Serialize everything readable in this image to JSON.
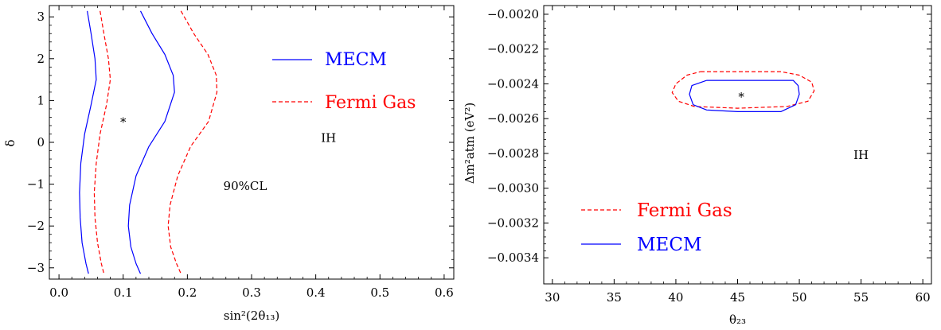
{
  "chart_data": [
    {
      "type": "line",
      "xlabel": "sin²(2θ₁₃)",
      "ylabel": "δ",
      "xlim": [
        -0.015,
        0.615
      ],
      "ylim": [
        -3.27,
        3.27
      ],
      "xticks": [
        0.0,
        0.1,
        0.2,
        0.3,
        0.4,
        0.5,
        0.6
      ],
      "xtick_labels": [
        "0.0",
        "0.1",
        "0.2",
        "0.3",
        "0.4",
        "0.5",
        "0.6"
      ],
      "yticks": [
        -3,
        -2,
        -1,
        0,
        1,
        2,
        3
      ],
      "ytick_labels": [
        "−3",
        "−2",
        "−1",
        "0",
        "1",
        "2",
        "3"
      ],
      "grid": false,
      "legend_position": "top-right",
      "legend": [
        {
          "label": "MECM",
          "color": "#0000ff",
          "dash": "solid"
        },
        {
          "label": "Fermi Gas",
          "color": "#ff0000",
          "dash": "dashed"
        }
      ],
      "annotations": [
        {
          "text": "IH",
          "x": 0.42,
          "y": 0.1
        },
        {
          "text": "90%CL",
          "x": 0.29,
          "y": -1.05
        }
      ],
      "best_fit": {
        "marker": "*",
        "x": 0.1,
        "y": 0.5
      },
      "series": [
        {
          "legend_index": 0,
          "color": "#0000ff",
          "dash": "solid",
          "points": [
            [
              0.044,
              3.14
            ],
            [
              0.05,
              2.6
            ],
            [
              0.056,
              2.0
            ],
            [
              0.058,
              1.5
            ],
            [
              0.05,
              0.9
            ],
            [
              0.04,
              0.2
            ],
            [
              0.034,
              -0.5
            ],
            [
              0.032,
              -1.2
            ],
            [
              0.033,
              -1.8
            ],
            [
              0.036,
              -2.4
            ],
            [
              0.042,
              -2.9
            ],
            [
              0.046,
              -3.14
            ]
          ]
        },
        {
          "legend_index": 0,
          "color": "#0000ff",
          "dash": "solid",
          "points": [
            [
              0.127,
              3.14
            ],
            [
              0.145,
              2.6
            ],
            [
              0.165,
              2.1
            ],
            [
              0.178,
              1.6
            ],
            [
              0.18,
              1.2
            ],
            [
              0.165,
              0.5
            ],
            [
              0.14,
              -0.1
            ],
            [
              0.12,
              -0.8
            ],
            [
              0.11,
              -1.5
            ],
            [
              0.108,
              -2.0
            ],
            [
              0.112,
              -2.5
            ],
            [
              0.12,
              -2.9
            ],
            [
              0.127,
              -3.14
            ]
          ]
        },
        {
          "legend_index": 1,
          "color": "#ff0000",
          "dash": "dashed",
          "points": [
            [
              0.064,
              3.14
            ],
            [
              0.07,
              2.6
            ],
            [
              0.077,
              2.0
            ],
            [
              0.08,
              1.5
            ],
            [
              0.074,
              0.9
            ],
            [
              0.064,
              0.2
            ],
            [
              0.058,
              -0.5
            ],
            [
              0.055,
              -1.2
            ],
            [
              0.056,
              -1.8
            ],
            [
              0.06,
              -2.4
            ],
            [
              0.066,
              -2.9
            ],
            [
              0.07,
              -3.14
            ]
          ]
        },
        {
          "legend_index": 1,
          "color": "#ff0000",
          "dash": "dashed",
          "points": [
            [
              0.19,
              3.14
            ],
            [
              0.21,
              2.6
            ],
            [
              0.232,
              2.1
            ],
            [
              0.245,
              1.6
            ],
            [
              0.246,
              1.2
            ],
            [
              0.233,
              0.5
            ],
            [
              0.205,
              -0.1
            ],
            [
              0.185,
              -0.8
            ],
            [
              0.173,
              -1.5
            ],
            [
              0.17,
              -2.0
            ],
            [
              0.174,
              -2.5
            ],
            [
              0.183,
              -2.9
            ],
            [
              0.19,
              -3.14
            ]
          ]
        }
      ]
    },
    {
      "type": "line",
      "xlabel": "θ₂₃",
      "ylabel": "Δm²atm (eV²)",
      "xlim": [
        29.3,
        60.7
      ],
      "ylim": [
        -0.00355,
        -0.00195
      ],
      "xticks": [
        30,
        35,
        40,
        45,
        50,
        55,
        60
      ],
      "xtick_labels": [
        "30",
        "35",
        "40",
        "45",
        "50",
        "55",
        "60"
      ],
      "yticks": [
        -0.0034,
        -0.0032,
        -0.003,
        -0.0028,
        -0.0026,
        -0.0024,
        -0.0022,
        -0.002
      ],
      "ytick_labels": [
        "−0.0034",
        "−0.0032",
        "−0.0030",
        "−0.0028",
        "−0.0026",
        "−0.0024",
        "−0.0022",
        "−0.0020"
      ],
      "grid": false,
      "legend_position": "bottom-left",
      "legend": [
        {
          "label": "Fermi Gas",
          "color": "#ff0000",
          "dash": "dashed"
        },
        {
          "label": "MECM",
          "color": "#0000ff",
          "dash": "solid"
        }
      ],
      "annotations": [
        {
          "text": "IH",
          "x": 55.0,
          "y": -0.00281
        }
      ],
      "best_fit": {
        "marker": "*",
        "x": 45.3,
        "y": -0.00247
      },
      "series": [
        {
          "legend_index": 0,
          "color": "#ff0000",
          "dash": "dashed",
          "points": [
            [
              42.0,
              -0.00233
            ],
            [
              48.5,
              -0.00233
            ],
            [
              50.0,
              -0.00235
            ],
            [
              51.0,
              -0.00239
            ],
            [
              51.2,
              -0.00244
            ],
            [
              50.7,
              -0.0025
            ],
            [
              49.0,
              -0.00253
            ],
            [
              45.0,
              -0.00254
            ],
            [
              41.5,
              -0.00253
            ],
            [
              40.2,
              -0.0025
            ],
            [
              39.7,
              -0.00245
            ],
            [
              40.0,
              -0.0024
            ],
            [
              40.9,
              -0.00235
            ],
            [
              42.0,
              -0.00233
            ]
          ]
        },
        {
          "legend_index": 1,
          "color": "#0000ff",
          "dash": "solid",
          "points": [
            [
              42.5,
              -0.00238
            ],
            [
              49.5,
              -0.00238
            ],
            [
              49.9,
              -0.00241
            ],
            [
              50.0,
              -0.00246
            ],
            [
              49.7,
              -0.00252
            ],
            [
              48.5,
              -0.00256
            ],
            [
              45.0,
              -0.00256
            ],
            [
              42.5,
              -0.00255
            ],
            [
              41.4,
              -0.00252
            ],
            [
              41.1,
              -0.00246
            ],
            [
              41.3,
              -0.00241
            ],
            [
              42.5,
              -0.00238
            ]
          ]
        }
      ]
    }
  ]
}
